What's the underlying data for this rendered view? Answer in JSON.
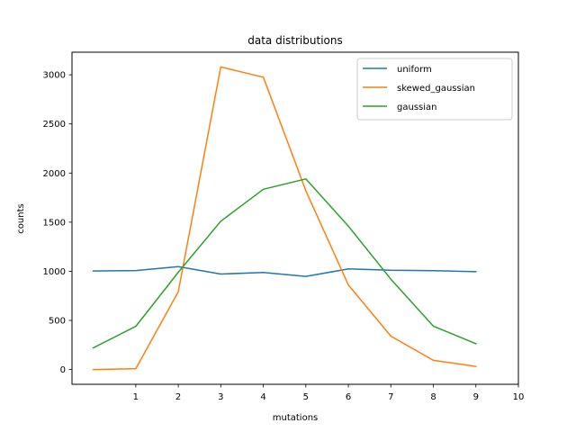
{
  "chart_data": {
    "type": "line",
    "title": "data distributions",
    "xlabel": "mutations",
    "ylabel": "counts",
    "x": [
      0,
      1,
      2,
      3,
      4,
      5,
      6,
      7,
      8,
      9
    ],
    "xticks": [
      1,
      2,
      3,
      4,
      5,
      6,
      7,
      8,
      9,
      10
    ],
    "yticks": [
      0,
      500,
      1000,
      1500,
      2000,
      2500,
      3000
    ],
    "xlim": [
      -0.5,
      10
    ],
    "ylim": [
      -150,
      3230
    ],
    "grid": false,
    "legend_position": "top-right",
    "series": [
      {
        "name": "uniform",
        "color": "#1f77b4",
        "values": [
          1003,
          1008,
          1048,
          972,
          988,
          948,
          1024,
          1011,
          1007,
          997
        ]
      },
      {
        "name": "skewed_gaussian",
        "color": "#ff7f0e",
        "values": [
          0,
          9,
          793,
          3080,
          2975,
          1820,
          862,
          340,
          94,
          32
        ]
      },
      {
        "name": "gaussian",
        "color": "#2ca02c",
        "values": [
          221,
          440,
          990,
          1510,
          1835,
          1940,
          1460,
          920,
          442,
          263
        ]
      }
    ]
  }
}
